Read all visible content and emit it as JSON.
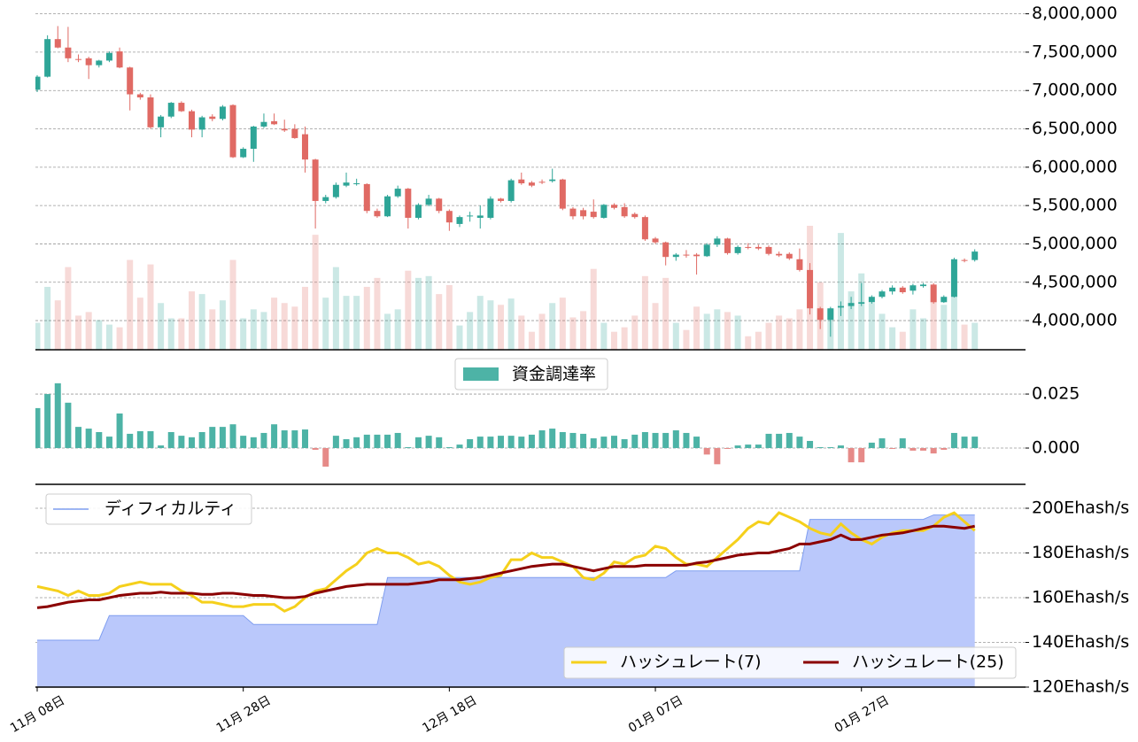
{
  "chart_data": [
    {
      "type": "candlestick",
      "open": [
        7010000,
        7180000,
        7670000,
        7560000,
        7410000,
        7420000,
        7330000,
        7390000,
        7510000,
        7300000,
        6950000,
        6910000,
        6520000,
        6660000,
        6840000,
        6730000,
        6490000,
        6660000,
        6630000,
        6810000,
        6130000,
        6240000,
        6530000,
        6600000,
        6500000,
        6500000,
        6430000,
        6100000,
        5560000,
        5610000,
        5760000,
        5780000,
        5780000,
        5430000,
        5360000,
        5620000,
        5720000,
        5340000,
        5510000,
        5590000,
        5430000,
        5260000,
        5360000,
        5340000,
        5340000,
        5590000,
        5560000,
        5840000,
        5800000,
        5810000,
        5820000,
        5840000,
        5460000,
        5440000,
        5420000,
        5340000,
        5510000,
        5480000,
        5390000,
        5350000,
        5070000,
        5020000,
        4830000,
        4860000,
        4860000,
        4840000,
        4990000,
        5070000,
        4880000,
        4960000,
        4960000,
        4960000,
        4870000,
        4870000,
        4800000,
        4660000,
        4160000,
        4010000,
        4170000,
        4190000,
        4220000,
        4240000,
        4310000,
        4380000,
        4430000,
        4390000,
        4450000,
        4470000,
        4240000,
        4310000,
        4790000,
        4790000
      ],
      "high": [
        7200000,
        7720000,
        7840000,
        7830000,
        7470000,
        7440000,
        7400000,
        7510000,
        7560000,
        7310000,
        6970000,
        6950000,
        6680000,
        6850000,
        6860000,
        6750000,
        6670000,
        6690000,
        6810000,
        6820000,
        6260000,
        6540000,
        6700000,
        6700000,
        6620000,
        6560000,
        6530000,
        6110000,
        5640000,
        5800000,
        5930000,
        5850000,
        5790000,
        5460000,
        5640000,
        5760000,
        5730000,
        5530000,
        5640000,
        5600000,
        5450000,
        5370000,
        5420000,
        5500000,
        5620000,
        5600000,
        5850000,
        5930000,
        5820000,
        5840000,
        5980000,
        5850000,
        5480000,
        5470000,
        5580000,
        5520000,
        5530000,
        5530000,
        5410000,
        5370000,
        5090000,
        5030000,
        4880000,
        4920000,
        4880000,
        5010000,
        5100000,
        5080000,
        4980000,
        5010000,
        4990000,
        4980000,
        4900000,
        4890000,
        4940000,
        4750000,
        4180000,
        4180000,
        4250000,
        4310000,
        4490000,
        4330000,
        4400000,
        4460000,
        4450000,
        4480000,
        4490000,
        4490000,
        4330000,
        4820000,
        4810000,
        4930000
      ],
      "low": [
        6980000,
        7170000,
        7550000,
        7370000,
        7370000,
        7150000,
        7300000,
        7370000,
        7290000,
        6740000,
        6880000,
        6500000,
        6390000,
        6640000,
        6720000,
        6390000,
        6390000,
        6600000,
        6610000,
        6120000,
        6120000,
        6070000,
        6510000,
        6550000,
        6460000,
        6370000,
        5930000,
        5200000,
        5530000,
        5590000,
        5740000,
        5760000,
        5400000,
        5340000,
        5350000,
        5600000,
        5200000,
        5320000,
        5490000,
        5400000,
        5170000,
        5220000,
        5290000,
        5200000,
        5320000,
        5540000,
        5540000,
        5770000,
        5740000,
        5780000,
        5800000,
        5440000,
        5320000,
        5320000,
        5330000,
        5330000,
        5450000,
        5340000,
        5330000,
        5040000,
        5000000,
        4720000,
        4780000,
        4820000,
        4600000,
        4830000,
        4960000,
        4860000,
        4860000,
        4930000,
        4920000,
        4850000,
        4830000,
        4790000,
        4640000,
        4080000,
        3890000,
        3790000,
        4060000,
        4150000,
        4190000,
        4220000,
        4290000,
        4340000,
        4350000,
        4340000,
        4430000,
        4220000,
        4230000,
        4300000,
        4760000,
        4770000
      ],
      "close": [
        7180000,
        7670000,
        7560000,
        7420000,
        7400000,
        7330000,
        7390000,
        7490000,
        7300000,
        6950000,
        6910000,
        6520000,
        6660000,
        6840000,
        6730000,
        6490000,
        6650000,
        6630000,
        6790000,
        6130000,
        6240000,
        6530000,
        6590000,
        6560000,
        6480000,
        6380000,
        6100000,
        5560000,
        5610000,
        5770000,
        5800000,
        5790000,
        5430000,
        5360000,
        5620000,
        5720000,
        5340000,
        5510000,
        5590000,
        5430000,
        5280000,
        5350000,
        5370000,
        5370000,
        5590000,
        5560000,
        5830000,
        5790000,
        5760000,
        5800000,
        5840000,
        5460000,
        5360000,
        5360000,
        5350000,
        5510000,
        5470000,
        5360000,
        5350000,
        5060000,
        5020000,
        4830000,
        4860000,
        4850000,
        4840000,
        4990000,
        5070000,
        4880000,
        4960000,
        4950000,
        4940000,
        4870000,
        4850000,
        4810000,
        4660000,
        4160000,
        4010000,
        4160000,
        4190000,
        4230000,
        4240000,
        4310000,
        4380000,
        4430000,
        4370000,
        4460000,
        4470000,
        4240000,
        4310000,
        4800000,
        4780000,
        4900000
      ],
      "volume": [
        30,
        70,
        55,
        92,
        38,
        42,
        33,
        28,
        25,
        100,
        58,
        95,
        52,
        35,
        35,
        65,
        62,
        45,
        55,
        100,
        35,
        45,
        42,
        58,
        52,
        48,
        70,
        128,
        58,
        92,
        60,
        60,
        70,
        80,
        40,
        45,
        88,
        80,
        82,
        62,
        72,
        27,
        42,
        60,
        55,
        50,
        57,
        38,
        20,
        40,
        52,
        58,
        36,
        43,
        90,
        30,
        20,
        25,
        38,
        82,
        52,
        80,
        30,
        22,
        48,
        40,
        45,
        42,
        38,
        15,
        20,
        30,
        38,
        35,
        45,
        138,
        75,
        45,
        130,
        65,
        85,
        52,
        40,
        25,
        20,
        45,
        35,
        70,
        50,
        60,
        28,
        30
      ],
      "up_color": "#2ea597",
      "down_color": "#e06a64",
      "ylim": [
        3620000,
        8180000
      ],
      "yticks": [
        {
          "value": 4000000,
          "label": "4,000,000"
        },
        {
          "value": 4500000,
          "label": "4,500,000"
        },
        {
          "value": 5000000,
          "label": "5,000,000"
        },
        {
          "value": 5500000,
          "label": "5,500,000"
        },
        {
          "value": 6000000,
          "label": "6,000,000"
        },
        {
          "value": 6500000,
          "label": "6,500,000"
        },
        {
          "value": 7000000,
          "label": "7,000,000"
        },
        {
          "value": 7500000,
          "label": "7,500,000"
        },
        {
          "value": 8000000,
          "label": "8,000,000"
        }
      ],
      "grid": true
    },
    {
      "type": "bar",
      "series": [
        {
          "name": "資金調達率",
          "color": "#4db3a6",
          "negative_color": "#e68a88",
          "values": [
            0.0185,
            0.025,
            0.03,
            0.021,
            0.0098,
            0.009,
            0.0074,
            0.0053,
            0.016,
            0.0066,
            0.0078,
            0.0078,
            0.0012,
            0.0074,
            0.0057,
            0.005,
            0.0074,
            0.0098,
            0.0098,
            0.011,
            0.0057,
            0.005,
            0.007,
            0.011,
            0.0082,
            0.0082,
            0.0086,
            -0.0008,
            -0.0086,
            0.0057,
            0.0041,
            0.005,
            0.0062,
            0.0062,
            0.0062,
            0.007,
            0.0004,
            0.005,
            0.0057,
            0.005,
            0.0004,
            0.0016,
            0.0041,
            0.0053,
            0.0053,
            0.0057,
            0.0057,
            0.0053,
            0.0062,
            0.0082,
            0.009,
            0.0074,
            0.007,
            0.0066,
            0.0045,
            0.0053,
            0.0057,
            0.0041,
            0.0062,
            0.0074,
            0.007,
            0.007,
            0.0082,
            0.007,
            0.0053,
            -0.003,
            -0.0075,
            -0.0004,
            0.0012,
            0.0016,
            0.0016,
            0.0066,
            0.0066,
            0.007,
            0.0053,
            0.0033,
            0.0004,
            0.0004,
            0.0012,
            -0.0066,
            -0.0066,
            0.0025,
            0.0045,
            -0.0004,
            0.0045,
            -0.0012,
            -0.0012,
            -0.0025,
            -0.0008,
            0.007,
            0.0053,
            0.0053
          ]
        }
      ],
      "ylim": [
        -0.0168,
        0.0447
      ],
      "yticks": [
        {
          "value": 0,
          "label": "0.000"
        },
        0.025
      ],
      "grid": true,
      "legend": "top"
    },
    {
      "type": "line",
      "categories": [
        "11月 08日",
        null,
        null,
        null,
        null,
        null,
        null,
        null,
        null,
        null,
        null,
        null,
        null,
        null,
        null,
        null,
        null,
        null,
        null,
        null,
        "11月 28日",
        null,
        null,
        null,
        null,
        null,
        null,
        null,
        null,
        null,
        null,
        null,
        null,
        null,
        null,
        null,
        null,
        null,
        null,
        null,
        "12月 18日",
        null,
        null,
        null,
        null,
        null,
        null,
        null,
        null,
        null,
        null,
        null,
        null,
        null,
        null,
        null,
        null,
        null,
        null,
        null,
        "01月 07日",
        null,
        null,
        null,
        null,
        null,
        null,
        null,
        null,
        null,
        null,
        null,
        null,
        null,
        null,
        null,
        null,
        null,
        null,
        null,
        "01月 27日",
        null,
        null,
        null,
        null,
        null,
        null,
        null,
        null,
        null,
        null,
        null
      ],
      "series": [
        {
          "name": "ディフィカルティ",
          "kind": "area",
          "color": "#7f9ef0",
          "fill": "#bac8fb",
          "legend": "upper left",
          "values": [
            141,
            141,
            141,
            141,
            141,
            141,
            141,
            152,
            152,
            152,
            152,
            152,
            152,
            152,
            152,
            152,
            152,
            152,
            152,
            152,
            152,
            148,
            148,
            148,
            148,
            148,
            148,
            148,
            148,
            148,
            148,
            148,
            148,
            148,
            169,
            169,
            169,
            169,
            169,
            169,
            169,
            169,
            169,
            169,
            169,
            169,
            169,
            169,
            169,
            169,
            169,
            169,
            169,
            169,
            169,
            169,
            169,
            169,
            169,
            169,
            169,
            169,
            172,
            172,
            172,
            172,
            172,
            172,
            172,
            172,
            172,
            172,
            172,
            172,
            172,
            195,
            195,
            195,
            195,
            195,
            195,
            195,
            195,
            195,
            195,
            195,
            195,
            197,
            197,
            197,
            197,
            197
          ]
        },
        {
          "name": "ハッシュレート(7)",
          "kind": "line",
          "color": "#f5d01c",
          "legend": "lower right",
          "values": [
            165,
            164,
            163,
            161,
            163,
            161,
            161,
            162,
            165,
            166,
            167,
            166,
            166,
            166,
            163,
            161,
            158,
            158,
            157,
            156,
            156,
            157,
            157,
            157,
            154,
            156,
            160,
            163,
            164,
            168,
            172,
            175,
            180,
            182,
            180,
            180,
            178,
            175,
            176,
            174,
            170,
            167,
            166,
            167,
            169,
            170,
            177,
            177,
            180,
            178,
            178,
            176,
            174,
            169,
            168,
            171,
            176,
            175,
            178,
            179,
            183,
            182,
            178,
            175,
            175,
            174,
            178,
            182,
            186,
            191,
            194,
            193,
            198,
            196,
            194,
            191,
            189,
            188,
            193,
            189,
            186,
            184,
            187,
            189,
            190,
            190,
            190,
            192,
            196,
            198,
            194,
            190
          ]
        },
        {
          "name": "ハッシュレート(25)",
          "kind": "line",
          "color": "#8b0000",
          "legend": "lower right",
          "values": [
            155.5,
            156,
            157,
            158,
            158.5,
            159,
            159,
            160,
            161,
            161.5,
            162,
            162,
            162.5,
            162,
            162,
            162,
            161.5,
            161.5,
            162,
            162,
            161.5,
            161,
            161,
            160.5,
            160,
            160,
            160.5,
            162,
            163,
            164,
            165,
            165.5,
            166,
            166,
            166,
            166,
            166,
            166.5,
            167,
            168,
            168,
            168,
            168.5,
            169,
            170,
            171,
            172,
            173,
            174,
            174.5,
            175,
            175,
            174,
            173,
            172,
            173,
            174,
            174,
            174,
            174.5,
            174.5,
            174.5,
            174.5,
            174.5,
            175.5,
            176,
            177,
            178,
            179,
            179.5,
            180,
            180,
            181,
            182,
            184,
            184,
            185,
            186,
            188,
            186,
            186,
            187,
            188,
            188.5,
            189,
            190,
            191,
            192,
            192,
            191.5,
            191,
            192
          ]
        }
      ],
      "ylim": [
        120,
        210.7
      ],
      "yticks": [
        {
          "value": 120,
          "label": "120Ehash/s"
        },
        {
          "value": 140,
          "label": "140Ehash/s"
        },
        {
          "value": 160,
          "label": "160Ehash/s"
        },
        {
          "value": 180,
          "label": "180Ehash/s"
        },
        {
          "value": 200,
          "label": "200Ehash/s"
        }
      ],
      "grid": true
    }
  ]
}
